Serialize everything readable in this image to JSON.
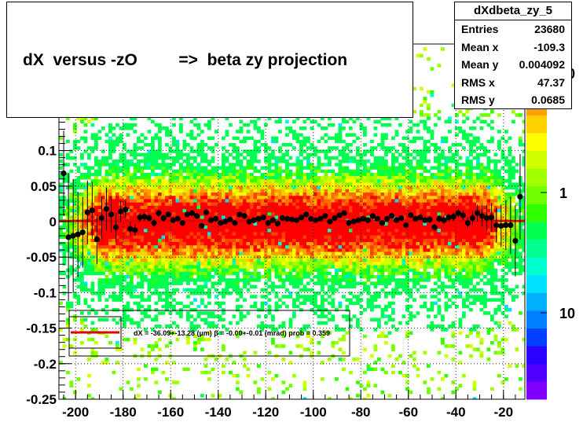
{
  "title": "dX  versus -zO         =>  beta zy projection",
  "stats": {
    "name": "dXdbeta_zy_5",
    "rows": [
      {
        "label": "Entries",
        "value": "23680"
      },
      {
        "label": "Mean x",
        "value": "-109.3"
      },
      {
        "label": "Mean y",
        "value": "0.004092"
      },
      {
        "label": "RMS x",
        "value": "47.37"
      },
      {
        "label": "RMS y",
        "value": "0.0685"
      }
    ]
  },
  "colors": {
    "fit_line": "#e00000",
    "points": "#000000",
    "frame": "#000000"
  },
  "chart_data": {
    "type": "heatmap",
    "title": "dX  versus -zO         =>  beta zy projection",
    "xlabel": "",
    "ylabel": "",
    "xlim": [
      -207,
      -11
    ],
    "ylim": [
      -0.25,
      0.25
    ],
    "x_ticks": [
      -200,
      -180,
      -160,
      -140,
      -120,
      -100,
      -80,
      -60,
      -40,
      -20
    ],
    "x_tick_labels": [
      "-200",
      "-180",
      "-160",
      "-140",
      "-120",
      "-100",
      "-80",
      "-60",
      "-40",
      "-20"
    ],
    "y_ticks": [
      -0.25,
      -0.2,
      -0.15,
      -0.1,
      -0.05,
      0,
      0.05,
      0.1
    ],
    "y_tick_labels": [
      "-0.25",
      "-0.2",
      "-0.15",
      "-0.1",
      "-0.05",
      "0",
      "0.05",
      "0.1"
    ],
    "z_scale": "log",
    "z_tick_labels": [
      "10",
      "1",
      "10"
    ],
    "z_palette": [
      "#7f00ff",
      "#5000ff",
      "#2a00ff",
      "#0040ff",
      "#0080ff",
      "#00b0ff",
      "#00e0ff",
      "#00ffd0",
      "#00ff90",
      "#00ff50",
      "#30ff00",
      "#70ff00",
      "#a0ff00",
      "#d0ff00",
      "#ffff00",
      "#ffd000",
      "#ffa000",
      "#ff7000",
      "#ff4000",
      "#ff0000"
    ],
    "grid": true,
    "fit_text": "dX = -36.09+-13.28 (µm) β =  -0.00+-0.01 (mrad) prob = 0.359",
    "fit_line": {
      "x": [
        -207,
        -11
      ],
      "y": [
        0.001,
        0.001
      ]
    },
    "profile": {
      "x": [
        -205,
        -203,
        -201,
        -199,
        -197,
        -195,
        -193,
        -191,
        -189,
        -187,
        -185,
        -183,
        -181,
        -179,
        -177,
        -175,
        -173,
        -171,
        -169,
        -167,
        -165,
        -163,
        -161,
        -159,
        -157,
        -155,
        -153,
        -151,
        -149,
        -147,
        -145,
        -143,
        -141,
        -139,
        -137,
        -135,
        -133,
        -131,
        -129,
        -127,
        -125,
        -123,
        -121,
        -119,
        -117,
        -115,
        -113,
        -111,
        -109,
        -107,
        -105,
        -103,
        -101,
        -99,
        -97,
        -95,
        -93,
        -91,
        -89,
        -87,
        -85,
        -83,
        -81,
        -79,
        -77,
        -75,
        -73,
        -71,
        -69,
        -67,
        -65,
        -63,
        -61,
        -59,
        -57,
        -55,
        -53,
        -51,
        -49,
        -47,
        -45,
        -43,
        -41,
        -39,
        -37,
        -35,
        -33,
        -31,
        -29,
        -27,
        -25,
        -23,
        -21,
        -19,
        -17,
        -15,
        -13
      ],
      "y": [
        0.068,
        -0.022,
        -0.02,
        -0.018,
        -0.015,
        0.013,
        0.016,
        -0.025,
        0.005,
        0.018,
        0.01,
        -0.008,
        0.014,
        0.017,
        -0.01,
        -0.012,
        0.006,
        0.007,
        0.005,
        -0.002,
        0.012,
        0.005,
        0.01,
        0.002,
        0.004,
        -0.002,
        0.01,
        0.012,
        0.008,
        -0.006,
        0.013,
        0.002,
        0.004,
        -0.002,
        0.0,
        0.003,
        -0.002,
        0.01,
        0.008,
        0.0,
        0.002,
        0.004,
        0.006,
        -0.002,
        0.002,
        -0.003,
        0.005,
        0.004,
        0.003,
        0.002,
        0.006,
        0.01,
        0.004,
        0.002,
        0.004,
        0.008,
        0.0,
        0.005,
        0.009,
        0.012,
        -0.002,
        0.0,
        0.002,
        0.004,
        0.002,
        0.008,
        0.004,
        -0.002,
        0.004,
        0.008,
        0.002,
        0.005,
        -0.005,
        0.009,
        0.004,
        0.006,
        0.002,
        0.003,
        -0.008,
        0.004,
        0.002,
        0.006,
        0.007,
        0.012,
        0.009,
        -0.002,
        0.005,
        0.012,
        0.008,
        0.005,
        0.006,
        -0.005,
        -0.006,
        -0.005,
        -0.005,
        -0.027,
        0.035
      ],
      "err": [
        0.06,
        0.09,
        0.08,
        0.06,
        0.05,
        0.045,
        0.04,
        0.035,
        0.03,
        0.03,
        0.025,
        0.02,
        0.015,
        0.012,
        0.01,
        0.008,
        0.006,
        0.006,
        0.005,
        0.005,
        0.005,
        0.005,
        0.004,
        0.004,
        0.004,
        0.004,
        0.004,
        0.004,
        0.004,
        0.004,
        0.004,
        0.004,
        0.004,
        0.004,
        0.004,
        0.004,
        0.004,
        0.004,
        0.004,
        0.004,
        0.004,
        0.004,
        0.004,
        0.004,
        0.004,
        0.004,
        0.004,
        0.004,
        0.004,
        0.004,
        0.004,
        0.004,
        0.004,
        0.004,
        0.004,
        0.004,
        0.004,
        0.004,
        0.004,
        0.004,
        0.004,
        0.004,
        0.004,
        0.004,
        0.004,
        0.004,
        0.004,
        0.004,
        0.004,
        0.004,
        0.004,
        0.004,
        0.004,
        0.004,
        0.004,
        0.004,
        0.004,
        0.005,
        0.005,
        0.005,
        0.005,
        0.005,
        0.006,
        0.006,
        0.007,
        0.008,
        0.01,
        0.012,
        0.015,
        0.018,
        0.02,
        0.025,
        0.03,
        0.035,
        0.04,
        0.05,
        0.06
      ]
    }
  }
}
